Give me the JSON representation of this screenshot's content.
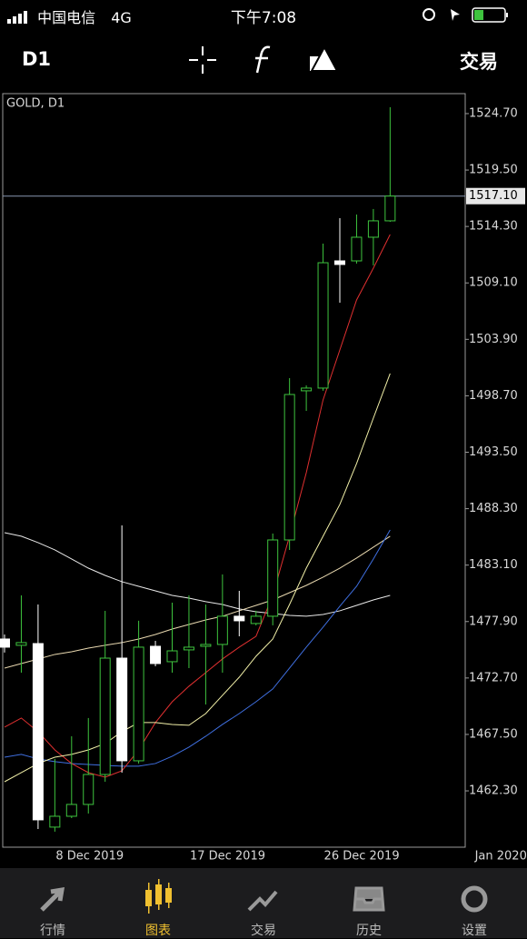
{
  "status_bar": {
    "carrier": "中国电信",
    "network": "4G",
    "time": "下午7:08"
  },
  "toolbar": {
    "timeframe": "D1",
    "trade": "交易"
  },
  "tabs": [
    "行情",
    "图表",
    "交易",
    "历史",
    "设置"
  ],
  "chart_data": {
    "type": "candlestick",
    "title": "GOLD, D1",
    "categories": [
      null,
      null,
      null,
      "8 Dec 2019",
      null,
      null,
      null,
      null,
      null,
      null,
      null,
      "17 Dec 2019",
      null,
      null,
      null,
      null,
      null,
      null,
      null,
      "26 Dec 2019",
      null,
      null,
      null,
      null,
      null,
      null,
      null,
      null,
      "Jan 2020"
    ],
    "candles": {
      "open": [
        1476.29,
        1475.71,
        1475.87,
        1458.96,
        1459.96,
        1461.05,
        1463.81,
        1474.53,
        1465.07,
        1475.62,
        1474.2,
        1475.29,
        1475.62,
        1475.79,
        1478.39,
        1477.72,
        1478.39,
        1485.42,
        1499.16,
        1499.41,
        1511.13,
        1511.13,
        1513.31,
        1514.82,
        null,
        null,
        null,
        null,
        null
      ],
      "high": [
        1476.71,
        1480.31,
        1479.47,
        1465.24,
        1467.33,
        1469.01,
        1478.89,
        1486.76,
        1477.97,
        1476.12,
        1479.64,
        1480.31,
        1479.47,
        1482.24,
        1480.73,
        1478.89,
        1486.01,
        1500.33,
        1499.66,
        1512.72,
        1515.07,
        1515.4,
        1515.91,
        1525.29,
        null,
        null,
        null,
        null,
        null
      ],
      "low": [
        1475.04,
        1473.19,
        1458.79,
        1458.54,
        1459.79,
        1460.21,
        1463.14,
        1463.98,
        1464.82,
        1473.78,
        1473.19,
        1473.61,
        1470.26,
        1473.19,
        1476.54,
        1477.55,
        1477.55,
        1484.5,
        1497.31,
        1499.16,
        1507.28,
        1510.88,
        1510.71,
        1514.73,
        null,
        null,
        null,
        null,
        null
      ],
      "close": [
        1475.54,
        1475.96,
        1459.63,
        1459.96,
        1461.05,
        1463.81,
        1474.53,
        1465.07,
        1475.54,
        1474.03,
        1475.2,
        1475.54,
        1475.79,
        1478.39,
        1477.97,
        1478.39,
        1485.42,
        1498.82,
        1499.41,
        1510.96,
        1510.8,
        1513.31,
        1514.82,
        1517.1,
        null,
        null,
        null,
        null,
        null
      ]
    },
    "bull_color": "#3ec43e",
    "bear_color": "#ffffff",
    "lines": [
      {
        "color": "#e8e8e8",
        "values": [
          1486.09,
          1485.76,
          1485.17,
          1484.5,
          1483.66,
          1482.82,
          1482.15,
          1481.57,
          1481.15,
          1480.73,
          1480.31,
          1480.06,
          1479.73,
          1479.47,
          1479.06,
          1478.8,
          1478.64,
          1478.47,
          1478.39,
          1478.55,
          1478.89,
          1479.39,
          1479.89,
          1480.31,
          null,
          null,
          null,
          null,
          null
        ]
      },
      {
        "color": "#e9d9b0",
        "values": [
          1473.61,
          1474.03,
          1474.45,
          1474.87,
          1475.12,
          1475.45,
          1475.71,
          1475.96,
          1476.29,
          1476.71,
          1477.21,
          1477.63,
          1478.05,
          1478.39,
          1478.89,
          1479.39,
          1479.89,
          1480.56,
          1481.23,
          1481.99,
          1482.82,
          1483.75,
          1484.75,
          1485.76,
          null,
          null,
          null,
          null,
          null
        ]
      },
      {
        "color": "#3f6fe0",
        "values": [
          1465.4,
          1465.66,
          1465.24,
          1464.99,
          1464.82,
          1464.73,
          1464.65,
          1464.57,
          1464.57,
          1464.82,
          1465.49,
          1466.33,
          1467.33,
          1468.42,
          1469.42,
          1470.51,
          1471.69,
          1473.61,
          1475.54,
          1477.38,
          1479.31,
          1481.15,
          1483.66,
          1486.34,
          null,
          null,
          null,
          null,
          null
        ]
      },
      {
        "color": "#e03030",
        "values": [
          1468.17,
          1469.01,
          1467.75,
          1466.07,
          1464.82,
          1463.98,
          1463.56,
          1464.15,
          1466.07,
          1468.59,
          1470.51,
          1471.94,
          1473.19,
          1474.45,
          1475.54,
          1476.54,
          1480.31,
          1485.76,
          1491.62,
          1498.32,
          1502.92,
          1507.53,
          1510.46,
          1513.56,
          null,
          null,
          null,
          null,
          null
        ]
      },
      {
        "color": "#f2f0a8",
        "values": [
          1463.14,
          1463.98,
          1464.82,
          1465.4,
          1465.66,
          1466.07,
          1466.66,
          1467.75,
          1468.59,
          1468.59,
          1468.42,
          1468.34,
          1469.42,
          1471.1,
          1472.77,
          1474.7,
          1476.29,
          1479.47,
          1482.82,
          1485.76,
          1488.69,
          1492.46,
          1496.64,
          1500.75,
          null,
          null,
          null,
          null,
          null
        ]
      }
    ],
    "current_price": {
      "value": 1517.1,
      "label": "1517.10"
    },
    "ylim": [
      1457.11,
      1526.54
    ],
    "yticks": [
      {
        "value": 1462.3,
        "label": "1462.30"
      },
      {
        "value": 1467.5,
        "label": "1467.50"
      },
      {
        "value": 1472.7,
        "label": "1472.70"
      },
      {
        "value": 1477.9,
        "label": "1477.90"
      },
      {
        "value": 1483.1,
        "label": "1483.10"
      },
      {
        "value": 1488.3,
        "label": "1488.30"
      },
      {
        "value": 1493.5,
        "label": "1493.50"
      },
      {
        "value": 1498.7,
        "label": "1498.70"
      },
      {
        "value": 1503.9,
        "label": "1503.90"
      },
      {
        "value": 1509.1,
        "label": "1509.10"
      },
      {
        "value": 1514.3,
        "label": "1514.30"
      },
      {
        "value": 1519.5,
        "label": "1519.50"
      },
      {
        "value": 1524.7,
        "label": "1524.70"
      }
    ]
  }
}
